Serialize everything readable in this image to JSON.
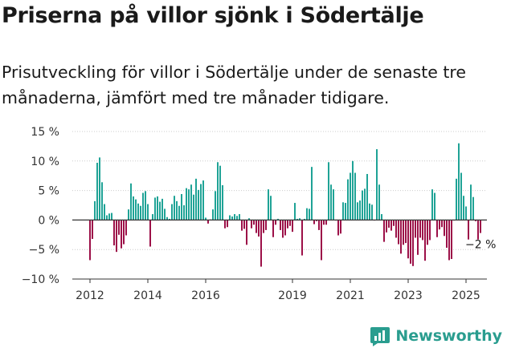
{
  "title": "Priserna på villor sjönk i Södertälje",
  "subtitle": "Prisutveckling för villor i Södertälje under de senaste tre månaderna, jämfört med tre månader tidigare.",
  "brand": "Newsworthy",
  "colors": {
    "positive": "#1fa396",
    "negative": "#9c1048",
    "axis": "#333333",
    "grid": "#cccccc"
  },
  "chart_data": {
    "type": "bar",
    "end_label": "−2 %",
    "ylim": [
      -10,
      15
    ],
    "yticks": [
      {
        "value": 15,
        "label": "15 %"
      },
      {
        "value": 10,
        "label": "10 %"
      },
      {
        "value": 5,
        "label": "5 %"
      },
      {
        "value": 0,
        "label": "0 %"
      },
      {
        "value": -5,
        "label": "−5 %"
      },
      {
        "value": -10,
        "label": "−10 %"
      }
    ],
    "xticks": [
      {
        "index": 0,
        "label": "2012"
      },
      {
        "index": 24,
        "label": "2014"
      },
      {
        "index": 48,
        "label": "2016"
      },
      {
        "index": 84,
        "label": "2019"
      },
      {
        "index": 108,
        "label": "2021"
      },
      {
        "index": 132,
        "label": "2023"
      },
      {
        "index": 156,
        "label": "2025"
      }
    ],
    "values": [
      -6.8,
      -3.2,
      3.2,
      9.7,
      10.6,
      6.4,
      2.7,
      0.8,
      1.1,
      1.2,
      -4.3,
      -5.4,
      -2.5,
      -4.8,
      -4.1,
      -2.6,
      1.8,
      6.2,
      4.0,
      3.5,
      2.8,
      2.4,
      4.6,
      4.9,
      2.7,
      -4.5,
      1.0,
      3.8,
      4.0,
      3.1,
      3.6,
      1.9,
      0.5,
      0.2,
      2.7,
      4.1,
      3.2,
      2.4,
      4.4,
      2.5,
      5.4,
      5.2,
      6.0,
      4.3,
      7.0,
      5.1,
      6.1,
      6.7,
      0.4,
      -0.6,
      0.1,
      1.8,
      4.9,
      9.8,
      9.2,
      5.9,
      -1.4,
      -1.2,
      0.8,
      0.6,
      1.0,
      0.7,
      1.0,
      -1.8,
      -1.5,
      -4.2,
      0.3,
      -1.4,
      -0.8,
      -2.2,
      -2.8,
      -7.9,
      -2.2,
      -1.7,
      5.2,
      4.1,
      -2.9,
      -0.8,
      0.2,
      -1.7,
      -3.0,
      -2.6,
      -1.4,
      -1.0,
      -2.0,
      2.9,
      0.2,
      0.3,
      -6.0,
      0.2,
      2.0,
      1.9,
      9.0,
      -0.7,
      -0.2,
      -1.7,
      -6.8,
      -0.8,
      -0.8,
      9.8,
      6.0,
      5.2,
      -0.1,
      -2.6,
      -2.3,
      3.0,
      2.9,
      6.9,
      8.0,
      10.0,
      8.0,
      3.0,
      3.3,
      5.0,
      5.3,
      7.8,
      2.8,
      2.6,
      -0.1,
      12.0,
      6.0,
      1.0,
      -3.7,
      -2.1,
      -1.3,
      -1.8,
      -1.0,
      -3.0,
      -4.1,
      -5.7,
      -4.2,
      -3.9,
      -6.5,
      -7.4,
      -7.8,
      -3.0,
      -5.9,
      -3.0,
      -3.4,
      -6.9,
      -4.2,
      -3.4,
      5.2,
      4.6,
      -2.9,
      -1.6,
      -1.2,
      -2.7,
      -4.7,
      -6.8,
      -6.6,
      -0.1,
      7.0,
      13.0,
      8.0,
      4.1,
      2.3,
      -3.3,
      6.0,
      3.9,
      -0.2,
      -3.3,
      -2.2
    ]
  }
}
